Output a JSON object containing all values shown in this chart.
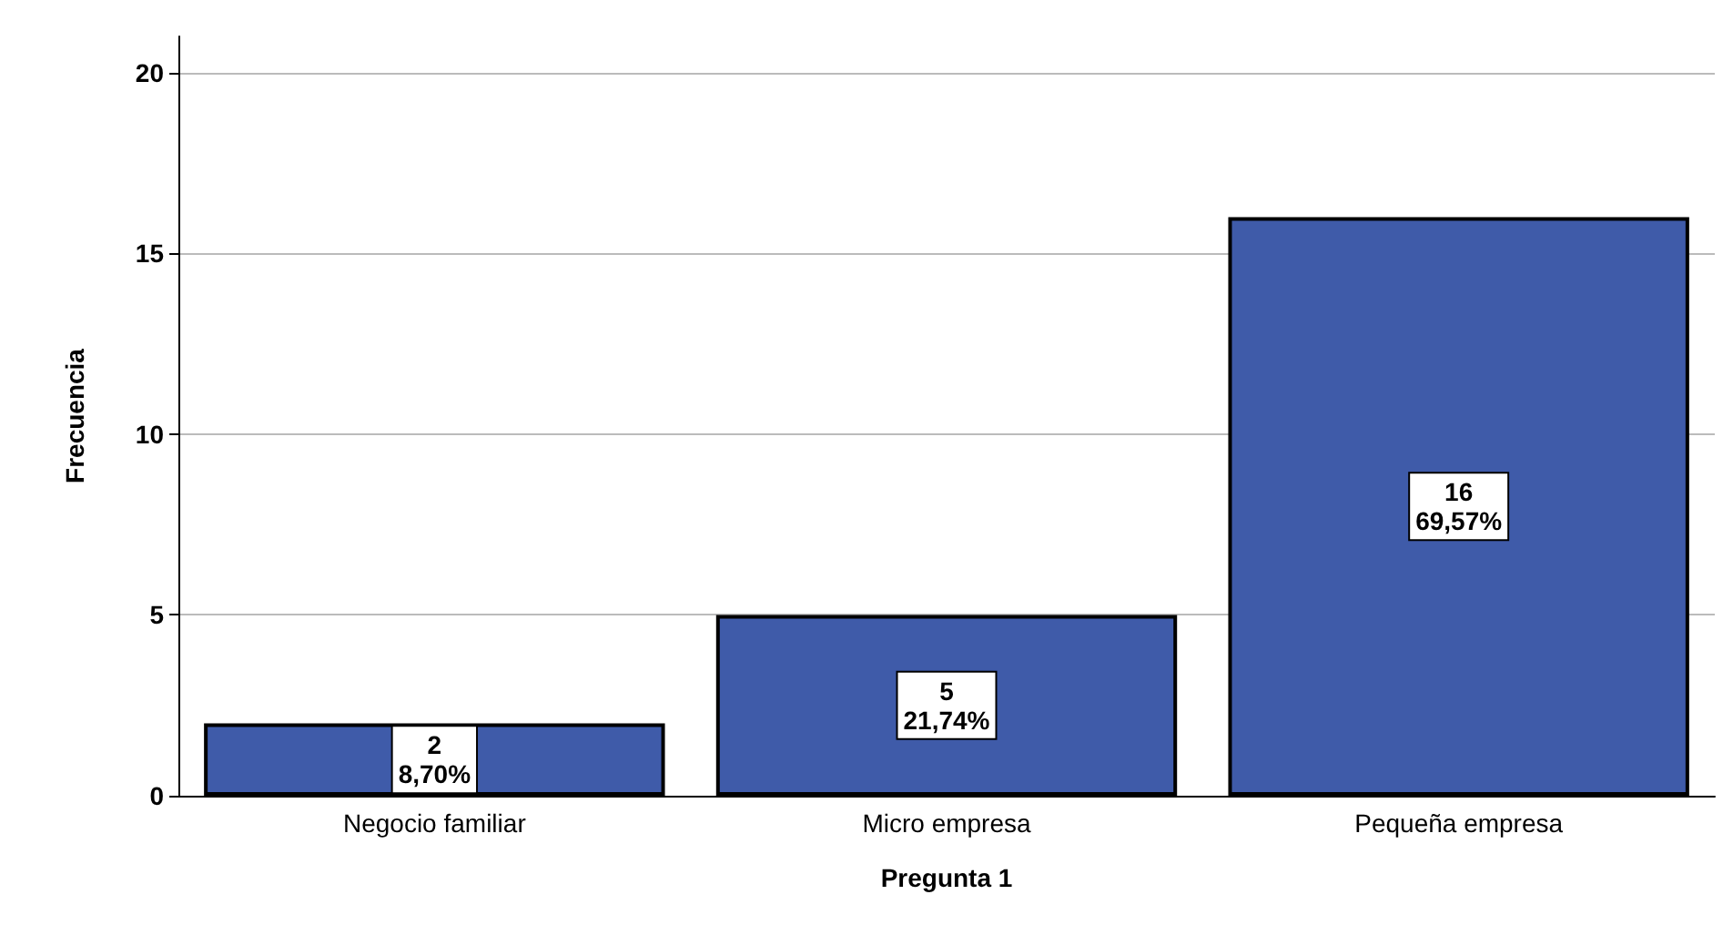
{
  "chart_data": {
    "type": "bar",
    "xlabel": "Pregunta 1",
    "ylabel": "Frecuencia",
    "categories": [
      "Negocio familiar",
      "Micro empresa",
      "Pequeña empresa"
    ],
    "values": [
      2,
      5,
      16
    ],
    "value_labels": [
      "2\n8,70%",
      "5\n21,74%",
      "16\n69,57%"
    ],
    "color": "#3f5ba9",
    "ylim": [
      0,
      21
    ],
    "yticks": [
      0,
      5,
      10,
      15,
      20
    ],
    "grid": "y"
  }
}
